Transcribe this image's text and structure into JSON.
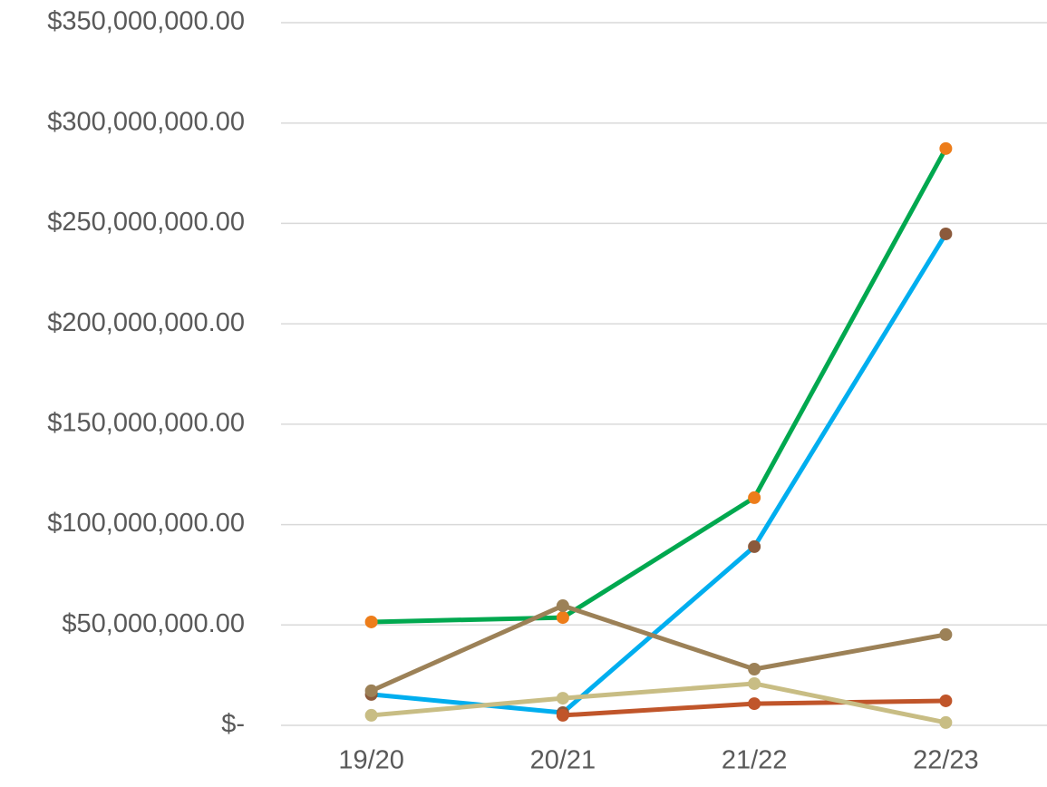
{
  "chart_data": {
    "type": "line",
    "categories": [
      "19/20",
      "20/21",
      "21/22",
      "22/23"
    ],
    "series": [
      {
        "color": "#00a84f",
        "marker_color": "#ed7d1a",
        "values": [
          51500000,
          53700000,
          113400000,
          287300000
        ]
      },
      {
        "color": "#00aeef",
        "marker_color": "#8b5a3c",
        "values": [
          15400000,
          6300000,
          89000000,
          244800000
        ]
      },
      {
        "color": "#9c8157",
        "marker_color": "#9c8157",
        "values": [
          17200000,
          59600000,
          28000000,
          45200000
        ]
      },
      {
        "color": "#c0552a",
        "marker_color": "#c0552a",
        "values": [
          null,
          5000000,
          10800000,
          12200000
        ]
      },
      {
        "color": "#c8bd84",
        "marker_color": "#c8bd84",
        "values": [
          5000000,
          13500000,
          20800000,
          1400000
        ]
      }
    ],
    "ylim": [
      0,
      350000000
    ],
    "yticks": [
      {
        "value": 0,
        "label": "$-"
      },
      {
        "value": 50000000,
        "label": "$50,000,000.00"
      },
      {
        "value": 100000000,
        "label": "$100,000,000.00"
      },
      {
        "value": 150000000,
        "label": "$150,000,000.00"
      },
      {
        "value": 200000000,
        "label": "$200,000,000.00"
      },
      {
        "value": 250000000,
        "label": "$250,000,000.00"
      },
      {
        "value": 300000000,
        "label": "$300,000,000.00"
      },
      {
        "value": 350000000,
        "label": "$350,000,000.00"
      }
    ],
    "grid": true
  }
}
